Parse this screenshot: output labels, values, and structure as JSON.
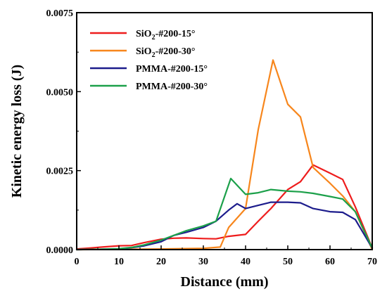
{
  "chart_data": {
    "type": "line",
    "xlabel": "Distance (mm)",
    "ylabel": "Kinetic energy loss (J)",
    "xlim": [
      0,
      70
    ],
    "ylim": [
      0,
      0.0075
    ],
    "xticks": [
      0,
      10,
      20,
      30,
      40,
      50,
      60,
      70
    ],
    "xtick_labels": [
      "0",
      "10",
      "20",
      "30",
      "40",
      "50",
      "60",
      "70"
    ],
    "yticks": [
      0,
      0.0025,
      0.005,
      0.0075
    ],
    "ytick_labels": [
      "0.0000",
      "0.0025",
      "0.0050",
      "0.0075"
    ],
    "grid": false,
    "legend_position": "top-left",
    "series": [
      {
        "name": "SiO2-#200-15°",
        "legend_main": "SiO",
        "legend_sub": "2",
        "legend_rest": "-#200-15°",
        "color": "#ee1c1c",
        "x": [
          0,
          3,
          6,
          10,
          13,
          16,
          20,
          23,
          26,
          30,
          33,
          36,
          40,
          43,
          46,
          50,
          53,
          56,
          60,
          63,
          66,
          70
        ],
        "y": [
          2e-05,
          5e-05,
          8e-05,
          0.00012,
          0.00013,
          0.00022,
          0.00033,
          0.00036,
          0.00037,
          0.00035,
          0.00034,
          0.00042,
          0.00048,
          0.0009,
          0.0013,
          0.0019,
          0.00215,
          0.00268,
          0.00242,
          0.00222,
          0.00135,
          5e-05
        ]
      },
      {
        "name": "SiO2-#200-30°",
        "legend_main": "SiO",
        "legend_sub": "2",
        "legend_rest": "-#200-30°",
        "color": "#f7861c",
        "x": [
          0,
          10,
          20,
          30,
          34,
          36,
          40,
          43,
          46.5,
          50,
          53,
          56,
          60,
          63,
          66,
          70
        ],
        "y": [
          0,
          1e-05,
          2e-05,
          4e-05,
          8e-05,
          0.0007,
          0.0013,
          0.0038,
          0.006,
          0.0046,
          0.0042,
          0.0026,
          0.0021,
          0.0017,
          0.0012,
          0
        ]
      },
      {
        "name": "PMMA-#200-15°",
        "legend_main": "PMMA-#200-15°",
        "legend_sub": "",
        "legend_rest": "",
        "color": "#1c1c8c",
        "x": [
          0,
          5,
          10,
          13,
          16,
          20,
          23,
          26,
          30,
          33,
          36,
          38,
          40,
          43,
          46,
          50,
          53,
          56,
          60,
          63,
          66,
          70
        ],
        "y": [
          0,
          1e-05,
          2e-05,
          6e-05,
          0.00012,
          0.00025,
          0.00045,
          0.00055,
          0.0007,
          0.0009,
          0.00125,
          0.00145,
          0.0013,
          0.0014,
          0.0015,
          0.0015,
          0.00148,
          0.0013,
          0.0012,
          0.00118,
          0.00095,
          5e-05
        ]
      },
      {
        "name": "PMMA-#200-30°",
        "legend_main": "PMMA-#200-30°",
        "legend_sub": "",
        "legend_rest": "",
        "color": "#1ca04a",
        "x": [
          0,
          5,
          10,
          13,
          16,
          20,
          23,
          26,
          30,
          33,
          36.5,
          40,
          43,
          46,
          50,
          53,
          56,
          60,
          63,
          66,
          70
        ],
        "y": [
          0,
          1e-05,
          3e-05,
          7e-05,
          0.00015,
          0.0003,
          0.00045,
          0.0006,
          0.00075,
          0.0009,
          0.00225,
          0.00175,
          0.0018,
          0.0019,
          0.00185,
          0.00183,
          0.00178,
          0.00168,
          0.0016,
          0.0012,
          5e-05
        ]
      }
    ]
  }
}
